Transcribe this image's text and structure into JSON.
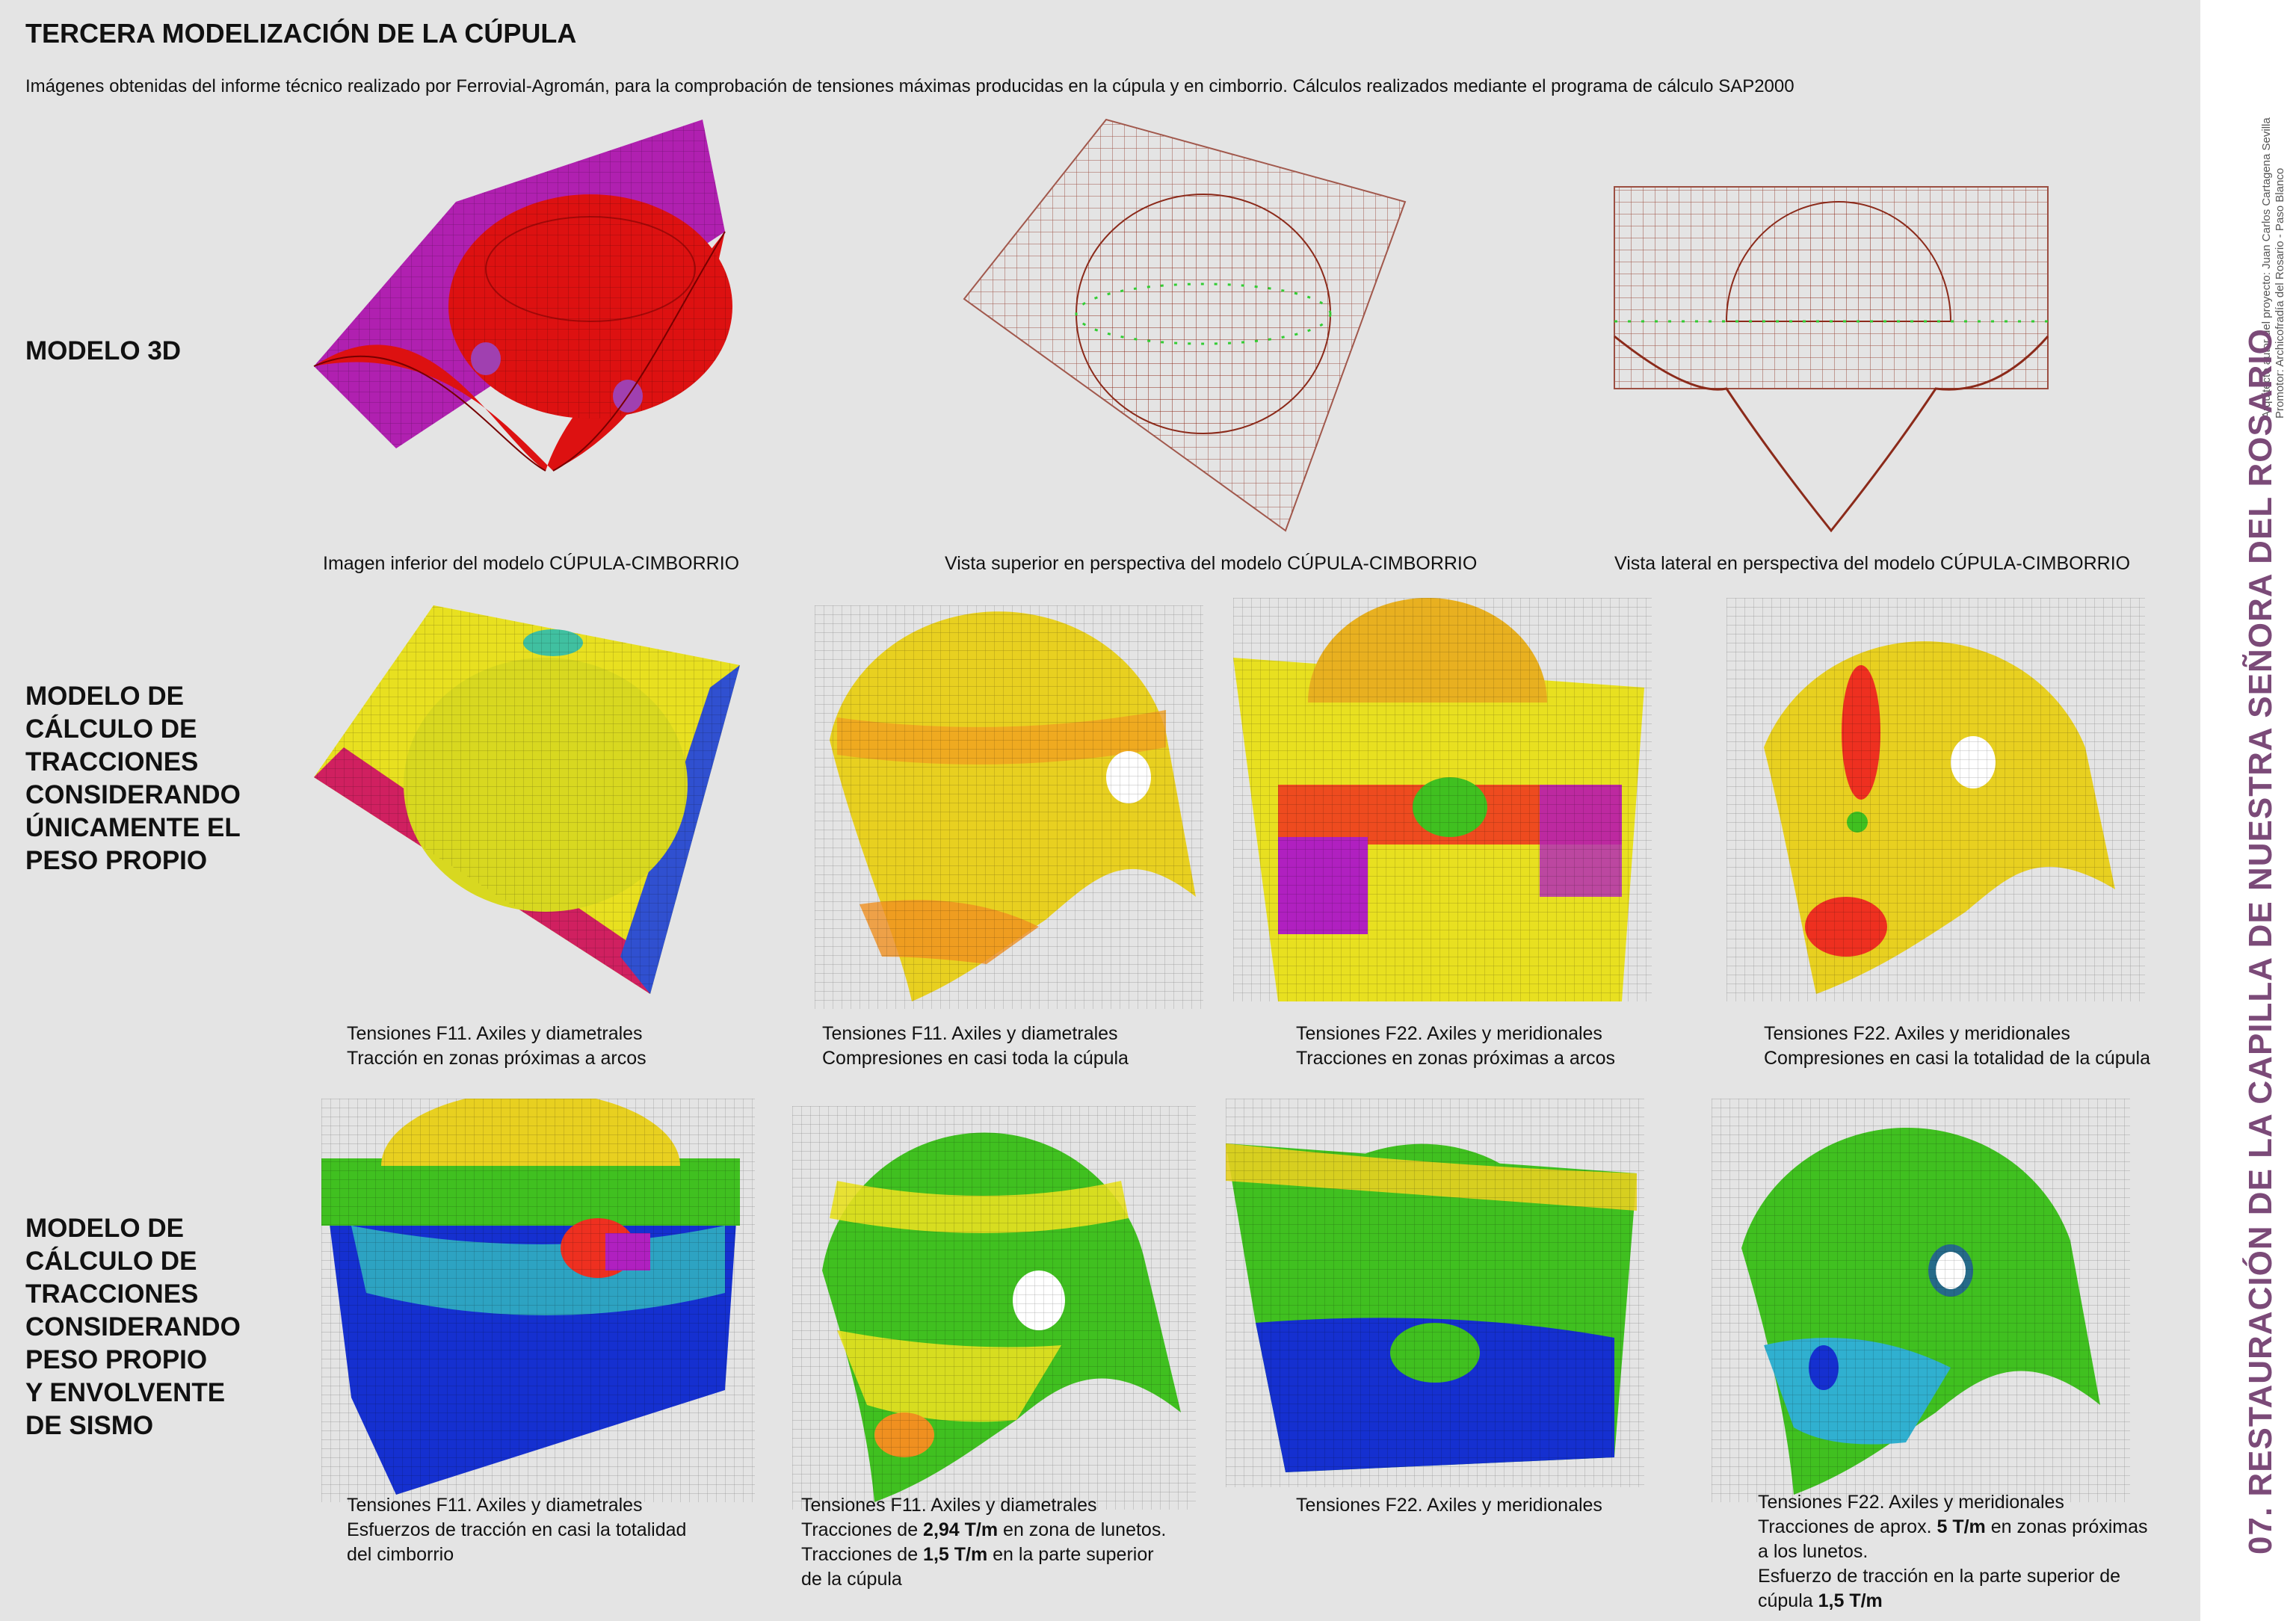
{
  "page": {
    "title": "TERCERA MODELIZACIÓN DE LA CÚPULA",
    "subtitle": "Imágenes obtenidas del informe técnico realizado por Ferrovial-Agromán, para la comprobación de tensiones máximas producidas en la cúpula y en cimborrio. Cálculos realizados mediante el programa de cálculo SAP2000"
  },
  "rows": [
    {
      "label_lines": [
        "MODELO 3D"
      ]
    },
    {
      "label_lines": [
        "MODELO DE",
        "CÁLCULO DE",
        "TRACCIONES",
        "CONSIDERANDO",
        "ÚNICAMENTE EL",
        "PESO PROPIO"
      ]
    },
    {
      "label_lines": [
        "MODELO DE",
        "CÁLCULO DE",
        "TRACCIONES",
        "CONSIDERANDO",
        "PESO PROPIO",
        "Y ENVOLVENTE",
        "DE SISMO"
      ]
    }
  ],
  "row1_captions": [
    {
      "line1": "Imagen inferior del modelo CÚPULA-CIMBORRIO"
    },
    {
      "line1": "Vista superior en perspectiva del modelo CÚPULA-CIMBORRIO"
    },
    {
      "line1": "Vista lateral en perspectiva del modelo CÚPULA-CIMBORRIO"
    }
  ],
  "row2_captions": [
    {
      "line1": "Tensiones F11. Axiles y diametrales",
      "line2": "Tracción en zonas próximas a arcos"
    },
    {
      "line1": "Tensiones F11. Axiles y diametrales",
      "line2": "Compresiones en casi toda la cúpula"
    },
    {
      "line1": "Tensiones F22. Axiles y meridionales",
      "line2": "Tracciones en zonas próximas a arcos"
    },
    {
      "line1": "Tensiones F22. Axiles y meridionales",
      "line2": "Compresiones en casi la totalidad de la cúpula"
    }
  ],
  "row3_captions": {
    "c1": {
      "line1": "Tensiones F11. Axiles y diametrales",
      "line2": "Esfuerzos de tracción en casi la totalidad",
      "line3": "del cimborrio"
    },
    "c2": {
      "line1": "Tensiones F11. Axiles y diametrales",
      "line2_pre": "Tracciones de ",
      "line2_bold": "2,94 T/m",
      "line2_post": " en zona de lunetos.",
      "line3_pre": "Tracciones de ",
      "line3_bold": "1,5 T/m",
      "line3_post": " en la parte superior",
      "line4": "de la cúpula"
    },
    "c3": {
      "line1": "Tensiones F22. Axiles y meridionales"
    },
    "c4": {
      "line1": "Tensiones F22. Axiles y meridionales",
      "line2_pre": "Tracciones de aprox. ",
      "line2_bold": "5 T/m",
      "line2_post": " en zonas próximas",
      "line3": "a los lunetos.",
      "line4": "Esfuerzo de tracción en la parte superior de",
      "line5_pre": "cúpula ",
      "line5_bold": "1,5 T/m"
    }
  },
  "sidebar": {
    "vertical_title": "07. RESTAURACIÓN DE LA CAPILLA DE NUESTRA SEÑORA DEL ROSARIO",
    "credit_line1": "Arquitecto autor del proyecto: Juan Carlos Cartagena Sevilla",
    "credit_line2": "Promotor: Archicofradía del Rosario - Paso Blanco"
  },
  "colors": {
    "sheet_bg": "#e4e4e4",
    "sidebar_bg": "#ffffff",
    "vertical_title": "#7b4a78",
    "mesh_red": "#dd1111",
    "mesh_magenta": "#b020b0",
    "wire_brown": "#8b2a1a",
    "stress_yellow": "#e8e020",
    "stress_green": "#40c020",
    "stress_blue": "#1530d0"
  }
}
